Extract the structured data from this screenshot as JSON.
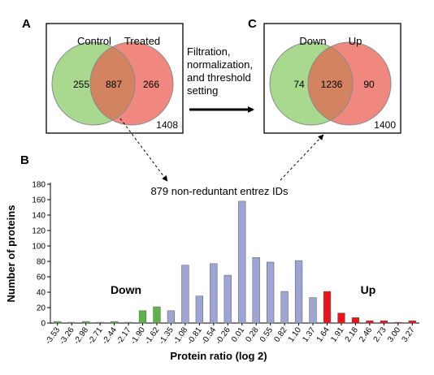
{
  "panel_a": {
    "label": "A",
    "left_name": "Control",
    "right_name": "Treated",
    "left_only": "255",
    "overlap": "887",
    "right_only": "266",
    "total": "1408",
    "left_color": "#a8d98f",
    "right_color": "#f08880",
    "overlap_color": "#d2835f"
  },
  "process": {
    "line1": "Filtration,",
    "line2": "normalization,",
    "line3": "and threshold",
    "line4": "setting"
  },
  "panel_c": {
    "label": "C",
    "left_name": "Down",
    "right_name": "Up",
    "left_only": "74",
    "overlap": "1236",
    "right_only": "90",
    "total": "1400",
    "left_color": "#a8d98f",
    "right_color": "#f08880",
    "overlap_color": "#d2835f"
  },
  "panel_b": {
    "label": "B",
    "annotation": "879 non-reduntant entrez IDs"
  },
  "chart_data": {
    "type": "bar",
    "xlabel": "Protein ratio (log 2)",
    "ylabel": "Number of proteins",
    "ylim": [
      0,
      180
    ],
    "yticks": [
      0,
      20,
      40,
      60,
      80,
      100,
      120,
      140,
      160,
      180
    ],
    "grid": false,
    "categories": [
      "-3.53",
      "-3.26",
      "-2.98",
      "-2.71",
      "-2.44",
      "-2.17",
      "-1.90",
      "-1.62",
      "-1.35",
      "-1.08",
      "-0.81",
      "-0.54",
      "-0.26",
      "0.01",
      "0.28",
      "0.55",
      "0.82",
      "1.10",
      "1.37",
      "1.64",
      "1.91",
      "2.18",
      "2.46",
      "2.73",
      "3.00",
      "3.27"
    ],
    "values": [
      2,
      1,
      2,
      1,
      2,
      1,
      16,
      21,
      16,
      75,
      35,
      77,
      62,
      158,
      85,
      79,
      41,
      81,
      33,
      41,
      13,
      7,
      3,
      3,
      1,
      3
    ],
    "bar_groups": [
      "down",
      "down",
      "down",
      "down",
      "down",
      "down",
      "down",
      "down",
      "neutral",
      "neutral",
      "neutral",
      "neutral",
      "neutral",
      "neutral",
      "neutral",
      "neutral",
      "neutral",
      "neutral",
      "neutral",
      "up",
      "up",
      "up",
      "up",
      "up",
      "up",
      "up"
    ],
    "colors": {
      "down": "#5db24a",
      "neutral": "#9ea4d3",
      "up": "#e8161b"
    },
    "annotations": {
      "down": "Down",
      "up": "Up"
    }
  }
}
